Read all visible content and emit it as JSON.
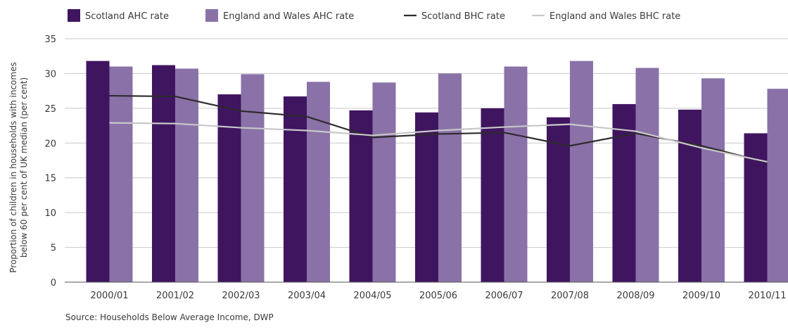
{
  "colors": {
    "scotland_ahc": "#3f1560",
    "ew_ahc": "#8a72a8",
    "scotland_bhc": "#2e2a2e",
    "ew_bhc": "#c8c8c8",
    "grid": "#c9c9c9",
    "axis": "#555555"
  },
  "source": "Source: Households Below Average Income, DWP",
  "chart_data": {
    "type": "bar",
    "title": "",
    "xlabel": "",
    "ylabel_lines": [
      "Proportion of children in households with incomes",
      "below 60 per cent of UK median (per cent)"
    ],
    "categories": [
      "2000/01",
      "2001/02",
      "2002/03",
      "2003/04",
      "2004/05",
      "2005/06",
      "2006/07",
      "2007/08",
      "2008/09",
      "2009/10",
      "2010/11"
    ],
    "ylim": [
      0,
      35
    ],
    "yticks": [
      0,
      5,
      10,
      15,
      20,
      25,
      30,
      35
    ],
    "grid": true,
    "legend_position": "top",
    "series": [
      {
        "name": "Scotland AHC rate",
        "kind": "bar",
        "color_key": "scotland_ahc",
        "values": [
          31.8,
          31.2,
          27.0,
          26.7,
          24.7,
          24.4,
          25.0,
          23.7,
          25.6,
          24.8,
          21.4
        ]
      },
      {
        "name": "England and Wales AHC rate",
        "kind": "bar",
        "color_key": "ew_ahc",
        "values": [
          31.0,
          30.7,
          29.9,
          28.8,
          28.7,
          30.0,
          31.0,
          31.8,
          30.8,
          29.3,
          27.8
        ]
      },
      {
        "name": "Scotland BHC rate",
        "kind": "line",
        "color_key": "scotland_bhc",
        "values": [
          26.8,
          26.7,
          24.6,
          23.8,
          20.8,
          21.3,
          21.5,
          19.6,
          21.4,
          19.6,
          17.2
        ]
      },
      {
        "name": "England and Wales BHC rate",
        "kind": "line",
        "color_key": "ew_bhc",
        "values": [
          22.9,
          22.8,
          22.2,
          21.8,
          21.1,
          21.8,
          22.3,
          22.7,
          21.7,
          19.3,
          17.3
        ]
      }
    ]
  }
}
